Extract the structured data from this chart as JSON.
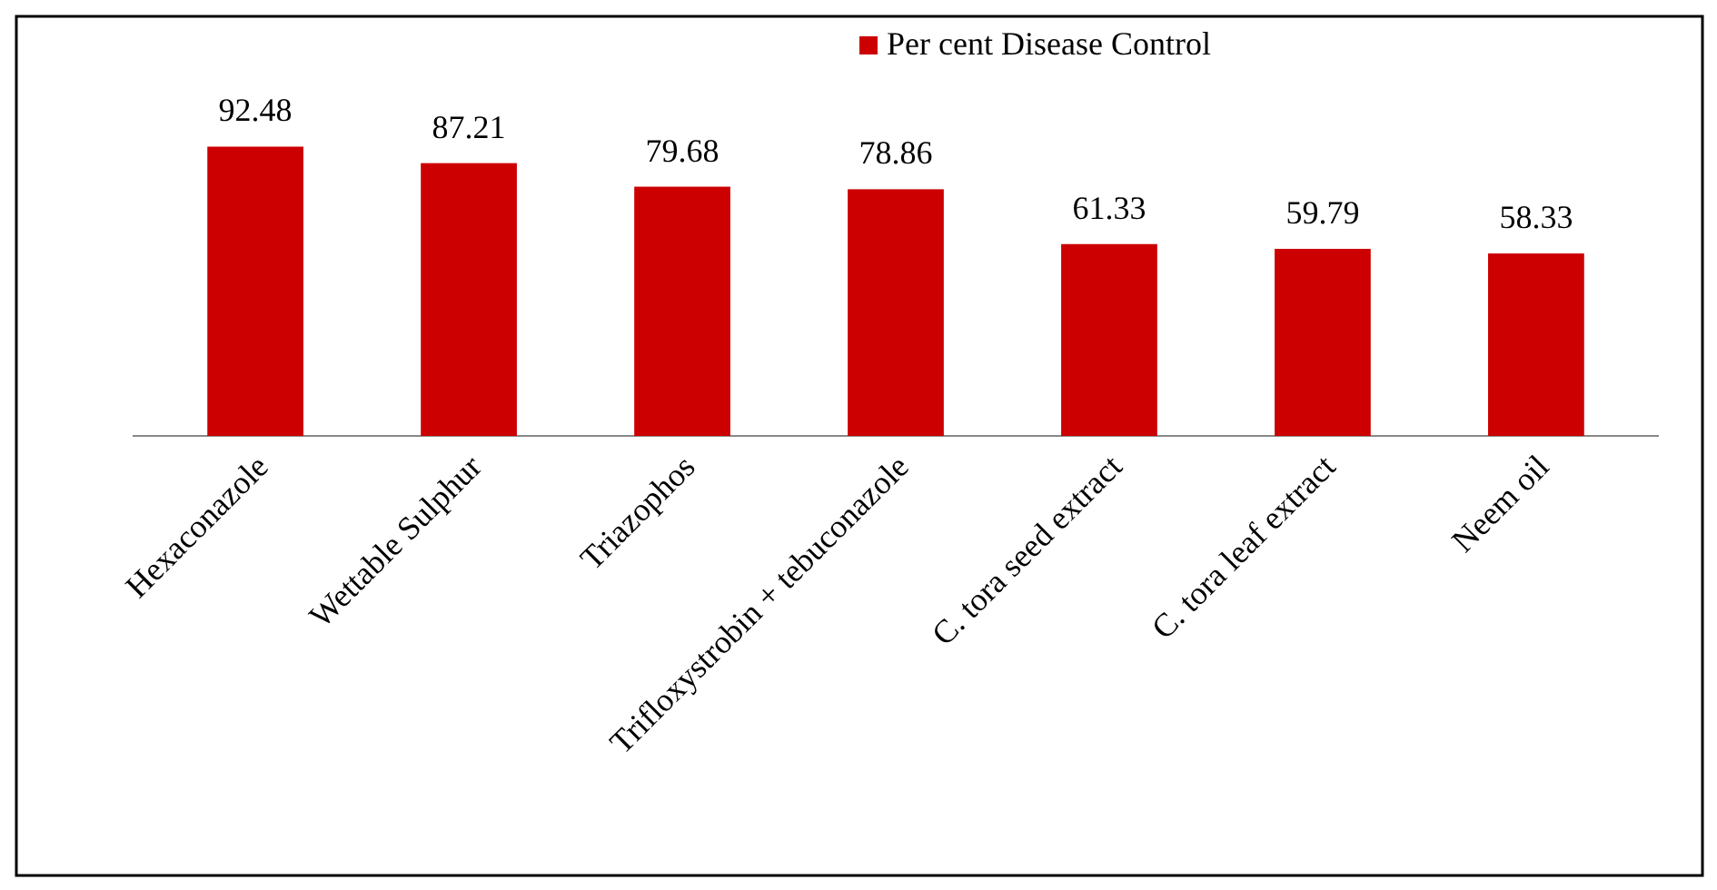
{
  "chart_data": {
    "type": "bar",
    "categories": [
      "Hexaconazole",
      "Wettable Sulphur",
      "Triazophos",
      "Trifloxystrobin + tebuconazole",
      "C. tora seed extract",
      "C. tora leaf extract",
      "Neem oil"
    ],
    "series": [
      {
        "name": "Per cent Disease Control",
        "color": "#cc0000",
        "values": [
          92.48,
          87.21,
          79.68,
          78.86,
          61.33,
          59.79,
          58.33
        ]
      }
    ],
    "data_labels": true,
    "legend": "top"
  }
}
